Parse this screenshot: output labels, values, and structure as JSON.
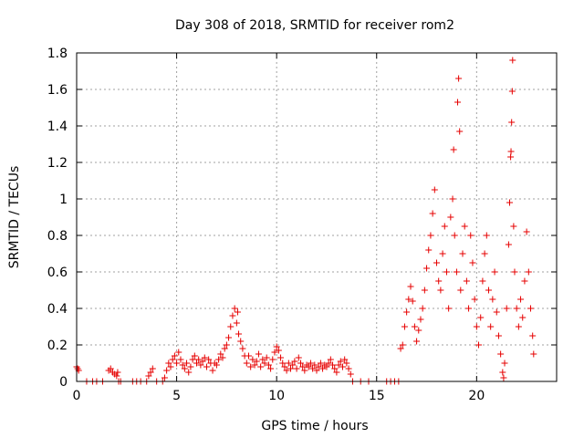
{
  "chart_data": {
    "type": "scatter",
    "title": "Day 308 of 2018, SRMTID for receiver rom2",
    "xlabel": "GPS time / hours",
    "ylabel": "SRMTID / TECUs",
    "xlim": [
      0,
      24
    ],
    "ylim": [
      0,
      1.8
    ],
    "x_ticks": [
      0,
      5,
      10,
      15,
      20
    ],
    "x_tick_labels": [
      "0",
      "5",
      "10",
      "15",
      "20"
    ],
    "y_ticks": [
      0,
      0.2,
      0.4,
      0.6,
      0.8,
      1.0,
      1.2,
      1.4,
      1.6,
      1.8
    ],
    "y_tick_labels": [
      "0",
      "0.2",
      "0.4",
      "0.6",
      "0.8",
      "1",
      "1.2",
      "1.4",
      "1.6",
      "1.8"
    ],
    "grid": true,
    "marker": "+",
    "marker_color": "#e60000",
    "series": [
      {
        "name": "SRMTID",
        "points": [
          [
            0.0,
            0.08
          ],
          [
            0.05,
            0.07
          ],
          [
            0.1,
            0.06
          ],
          [
            0.5,
            0.0
          ],
          [
            0.8,
            0.0
          ],
          [
            1.0,
            0.0
          ],
          [
            1.3,
            0.0
          ],
          [
            1.6,
            0.06
          ],
          [
            1.7,
            0.07
          ],
          [
            1.8,
            0.05
          ],
          [
            1.9,
            0.04
          ],
          [
            2.0,
            0.03
          ],
          [
            2.05,
            0.05
          ],
          [
            2.1,
            0.0
          ],
          [
            2.2,
            0.0
          ],
          [
            2.8,
            0.0
          ],
          [
            3.0,
            0.0
          ],
          [
            3.2,
            0.0
          ],
          [
            3.5,
            0.0
          ],
          [
            3.6,
            0.03
          ],
          [
            3.7,
            0.05
          ],
          [
            3.8,
            0.07
          ],
          [
            4.0,
            0.0
          ],
          [
            4.3,
            0.0
          ],
          [
            4.4,
            0.02
          ],
          [
            4.5,
            0.06
          ],
          [
            4.6,
            0.1
          ],
          [
            4.7,
            0.08
          ],
          [
            4.8,
            0.12
          ],
          [
            4.9,
            0.14
          ],
          [
            5.0,
            0.1
          ],
          [
            5.1,
            0.16
          ],
          [
            5.2,
            0.12
          ],
          [
            5.3,
            0.09
          ],
          [
            5.4,
            0.07
          ],
          [
            5.5,
            0.1
          ],
          [
            5.6,
            0.05
          ],
          [
            5.7,
            0.08
          ],
          [
            5.8,
            0.12
          ],
          [
            5.9,
            0.14
          ],
          [
            6.0,
            0.1
          ],
          [
            6.1,
            0.12
          ],
          [
            6.2,
            0.09
          ],
          [
            6.3,
            0.11
          ],
          [
            6.4,
            0.13
          ],
          [
            6.5,
            0.08
          ],
          [
            6.6,
            0.12
          ],
          [
            6.7,
            0.1
          ],
          [
            6.8,
            0.06
          ],
          [
            6.9,
            0.1
          ],
          [
            7.0,
            0.09
          ],
          [
            7.1,
            0.12
          ],
          [
            7.2,
            0.15
          ],
          [
            7.3,
            0.13
          ],
          [
            7.4,
            0.18
          ],
          [
            7.5,
            0.2
          ],
          [
            7.6,
            0.24
          ],
          [
            7.7,
            0.3
          ],
          [
            7.8,
            0.36
          ],
          [
            7.9,
            0.4
          ],
          [
            8.0,
            0.32
          ],
          [
            8.05,
            0.38
          ],
          [
            8.1,
            0.26
          ],
          [
            8.2,
            0.22
          ],
          [
            8.3,
            0.18
          ],
          [
            8.4,
            0.14
          ],
          [
            8.5,
            0.1
          ],
          [
            8.6,
            0.14
          ],
          [
            8.7,
            0.08
          ],
          [
            8.8,
            0.12
          ],
          [
            8.9,
            0.09
          ],
          [
            9.0,
            0.11
          ],
          [
            9.1,
            0.15
          ],
          [
            9.2,
            0.08
          ],
          [
            9.3,
            0.12
          ],
          [
            9.4,
            0.1
          ],
          [
            9.5,
            0.13
          ],
          [
            9.6,
            0.09
          ],
          [
            9.7,
            0.07
          ],
          [
            9.8,
            0.12
          ],
          [
            9.9,
            0.16
          ],
          [
            10.0,
            0.19
          ],
          [
            10.1,
            0.17
          ],
          [
            10.2,
            0.13
          ],
          [
            10.3,
            0.1
          ],
          [
            10.4,
            0.08
          ],
          [
            10.5,
            0.06
          ],
          [
            10.6,
            0.1
          ],
          [
            10.7,
            0.07
          ],
          [
            10.8,
            0.09
          ],
          [
            10.9,
            0.11
          ],
          [
            11.0,
            0.07
          ],
          [
            11.1,
            0.13
          ],
          [
            11.2,
            0.1
          ],
          [
            11.3,
            0.08
          ],
          [
            11.4,
            0.06
          ],
          [
            11.5,
            0.09
          ],
          [
            11.6,
            0.08
          ],
          [
            11.7,
            0.1
          ],
          [
            11.8,
            0.07
          ],
          [
            11.9,
            0.09
          ],
          [
            12.0,
            0.06
          ],
          [
            12.1,
            0.08
          ],
          [
            12.2,
            0.1
          ],
          [
            12.3,
            0.07
          ],
          [
            12.4,
            0.09
          ],
          [
            12.5,
            0.08
          ],
          [
            12.6,
            0.1
          ],
          [
            12.7,
            0.12
          ],
          [
            12.8,
            0.09
          ],
          [
            12.9,
            0.07
          ],
          [
            13.0,
            0.05
          ],
          [
            13.1,
            0.09
          ],
          [
            13.2,
            0.11
          ],
          [
            13.3,
            0.08
          ],
          [
            13.4,
            0.12
          ],
          [
            13.5,
            0.1
          ],
          [
            13.6,
            0.07
          ],
          [
            13.7,
            0.04
          ],
          [
            13.8,
            0.0
          ],
          [
            14.2,
            0.0
          ],
          [
            14.6,
            0.0
          ],
          [
            15.5,
            0.0
          ],
          [
            15.7,
            0.0
          ],
          [
            15.9,
            0.0
          ],
          [
            16.1,
            0.0
          ],
          [
            16.2,
            0.18
          ],
          [
            16.3,
            0.2
          ],
          [
            16.4,
            0.3
          ],
          [
            16.5,
            0.38
          ],
          [
            16.6,
            0.45
          ],
          [
            16.7,
            0.52
          ],
          [
            16.8,
            0.44
          ],
          [
            16.9,
            0.3
          ],
          [
            17.0,
            0.22
          ],
          [
            17.1,
            0.28
          ],
          [
            17.2,
            0.34
          ],
          [
            17.3,
            0.4
          ],
          [
            17.4,
            0.5
          ],
          [
            17.5,
            0.62
          ],
          [
            17.6,
            0.72
          ],
          [
            17.7,
            0.8
          ],
          [
            17.8,
            0.92
          ],
          [
            17.9,
            1.05
          ],
          [
            18.0,
            0.65
          ],
          [
            18.1,
            0.55
          ],
          [
            18.2,
            0.5
          ],
          [
            18.3,
            0.7
          ],
          [
            18.4,
            0.85
          ],
          [
            18.5,
            0.6
          ],
          [
            18.6,
            0.4
          ],
          [
            18.7,
            0.9
          ],
          [
            18.8,
            1.0
          ],
          [
            18.85,
            1.27
          ],
          [
            18.9,
            0.8
          ],
          [
            19.0,
            0.6
          ],
          [
            19.05,
            1.53
          ],
          [
            19.1,
            1.66
          ],
          [
            19.15,
            1.37
          ],
          [
            19.2,
            0.5
          ],
          [
            19.3,
            0.7
          ],
          [
            19.4,
            0.85
          ],
          [
            19.5,
            0.55
          ],
          [
            19.6,
            0.4
          ],
          [
            19.7,
            0.8
          ],
          [
            19.8,
            0.65
          ],
          [
            19.9,
            0.45
          ],
          [
            20.0,
            0.3
          ],
          [
            20.1,
            0.2
          ],
          [
            20.2,
            0.35
          ],
          [
            20.3,
            0.55
          ],
          [
            20.4,
            0.7
          ],
          [
            20.5,
            0.8
          ],
          [
            20.6,
            0.5
          ],
          [
            20.7,
            0.3
          ],
          [
            20.8,
            0.45
          ],
          [
            20.9,
            0.6
          ],
          [
            21.0,
            0.38
          ],
          [
            21.1,
            0.25
          ],
          [
            21.2,
            0.15
          ],
          [
            21.3,
            0.05
          ],
          [
            21.35,
            0.02
          ],
          [
            21.4,
            0.1
          ],
          [
            21.5,
            0.4
          ],
          [
            21.6,
            0.75
          ],
          [
            21.65,
            0.98
          ],
          [
            21.7,
            1.23
          ],
          [
            21.72,
            1.26
          ],
          [
            21.75,
            1.42
          ],
          [
            21.78,
            1.59
          ],
          [
            21.8,
            1.76
          ],
          [
            21.85,
            0.85
          ],
          [
            21.9,
            0.6
          ],
          [
            22.0,
            0.4
          ],
          [
            22.1,
            0.3
          ],
          [
            22.2,
            0.45
          ],
          [
            22.3,
            0.35
          ],
          [
            22.4,
            0.55
          ],
          [
            22.5,
            0.82
          ],
          [
            22.6,
            0.6
          ],
          [
            22.7,
            0.4
          ],
          [
            22.8,
            0.25
          ],
          [
            22.85,
            0.15
          ]
        ]
      }
    ]
  }
}
